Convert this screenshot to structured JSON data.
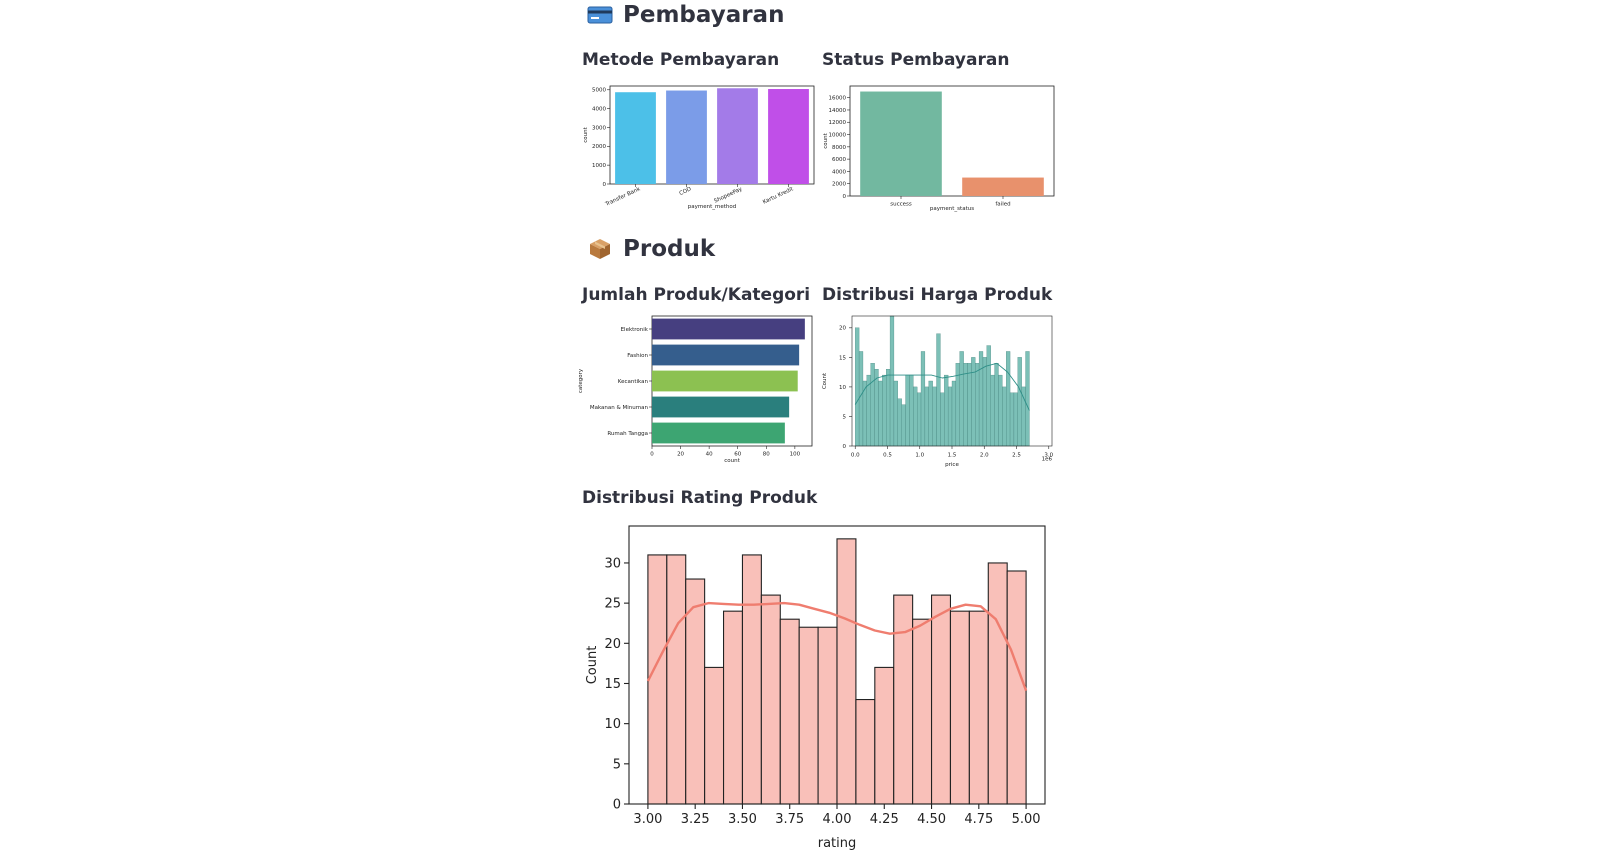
{
  "sections": {
    "payment": {
      "icon": "credit-card-icon",
      "title": "Pembayaran"
    },
    "product": {
      "icon": "package-icon",
      "title": "Produk"
    }
  },
  "charts": {
    "payment_method_title": "Metode Pembayaran",
    "payment_status_title": "Status Pembayaran",
    "category_title": "Jumlah Produk/Kategori",
    "price_title": "Distribusi Harga Produk",
    "rating_title": "Distribusi Rating Produk"
  },
  "chart_data": [
    {
      "type": "bar",
      "categories": [
        "Transfer Bank",
        "COD",
        "ShopeePay",
        "Kartu Kredit"
      ],
      "values": [
        4870,
        4960,
        5080,
        5040
      ],
      "xlabel": "payment_method",
      "ylabel": "count",
      "ylim": [
        0,
        5200
      ],
      "yticks": [
        0,
        1000,
        2000,
        3000,
        4000,
        5000
      ],
      "colors": [
        "#4cc0e8",
        "#7b9ce8",
        "#a37be8",
        "#c04fe8"
      ]
    },
    {
      "type": "bar",
      "categories": [
        "success",
        "failed"
      ],
      "values": [
        17000,
        3000
      ],
      "xlabel": "payment_status",
      "ylabel": "count",
      "ylim": [
        0,
        17900
      ],
      "yticks": [
        0,
        2000,
        4000,
        6000,
        8000,
        10000,
        12000,
        14000,
        16000
      ],
      "colors": [
        "#72b8a0",
        "#e8916c"
      ]
    },
    {
      "type": "bar",
      "orientation": "horizontal",
      "categories": [
        "Elektronik",
        "Fashion",
        "Kecantikan",
        "Makanan & Minuman",
        "Rumah Tangga"
      ],
      "values": [
        107,
        103,
        102,
        96,
        93
      ],
      "xlabel": "count",
      "ylabel": "category",
      "xlim": [
        0,
        112
      ],
      "xticks": [
        0,
        20,
        40,
        60,
        80,
        100
      ],
      "colors": [
        "#463f80",
        "#355e8d",
        "#8cc151",
        "#2a7f7d",
        "#3da572"
      ]
    },
    {
      "type": "histogram",
      "xlabel": "price",
      "ylabel": "Count",
      "x_scale_label": "1e6",
      "xlim": [
        -0.05,
        3.05
      ],
      "ylim": [
        0,
        22
      ],
      "xticks": [
        "0.0",
        "0.5",
        "1.0",
        "1.5",
        "2.0",
        "2.5",
        "3.0"
      ],
      "yticks": [
        0,
        5,
        10,
        15,
        20
      ],
      "bin_start": 0.0,
      "bin_width": 0.06,
      "counts": [
        20,
        16,
        11,
        12,
        14,
        13,
        11,
        12,
        13,
        22,
        11,
        8,
        7,
        12,
        12,
        10,
        9,
        16,
        10,
        11,
        10,
        19,
        9,
        12,
        10,
        11,
        14,
        16,
        14,
        14,
        15,
        14,
        16,
        15,
        17,
        12,
        14,
        12,
        10,
        16,
        9,
        9,
        15,
        10,
        16
      ],
      "kde": [
        7,
        10,
        11.5,
        12,
        12,
        12,
        12,
        12,
        11.5,
        11.8,
        12.2,
        12.5,
        13.5,
        14,
        12.5,
        10,
        6
      ],
      "bar_color": "#7cc0b7",
      "kde_color": "#2f8f88"
    },
    {
      "type": "histogram",
      "xlabel": "rating",
      "ylabel": "Count",
      "xlim": [
        2.9,
        5.1
      ],
      "ylim": [
        0,
        34.6
      ],
      "xticks": [
        "3.00",
        "3.25",
        "3.50",
        "3.75",
        "4.00",
        "4.25",
        "4.50",
        "4.75",
        "5.00"
      ],
      "yticks": [
        0,
        5,
        10,
        15,
        20,
        25,
        30
      ],
      "bin_start": 3.0,
      "bin_width": 0.1,
      "counts": [
        31,
        31,
        28,
        17,
        24,
        31,
        26,
        23,
        22,
        22,
        33,
        13,
        17,
        26,
        23,
        26,
        24,
        24,
        30,
        29
      ],
      "kde": [
        15.3,
        19,
        22.5,
        24.5,
        25,
        24.9,
        24.8,
        24.8,
        24.9,
        25,
        24.8,
        24.3,
        23.8,
        23.1,
        22.3,
        21.6,
        21.2,
        21.4,
        22.2,
        23.3,
        24.3,
        24.8,
        24.6,
        23,
        19.2,
        14.1
      ],
      "bar_color": "#f9c0b9",
      "kde_color": "#ef7d6f"
    }
  ]
}
